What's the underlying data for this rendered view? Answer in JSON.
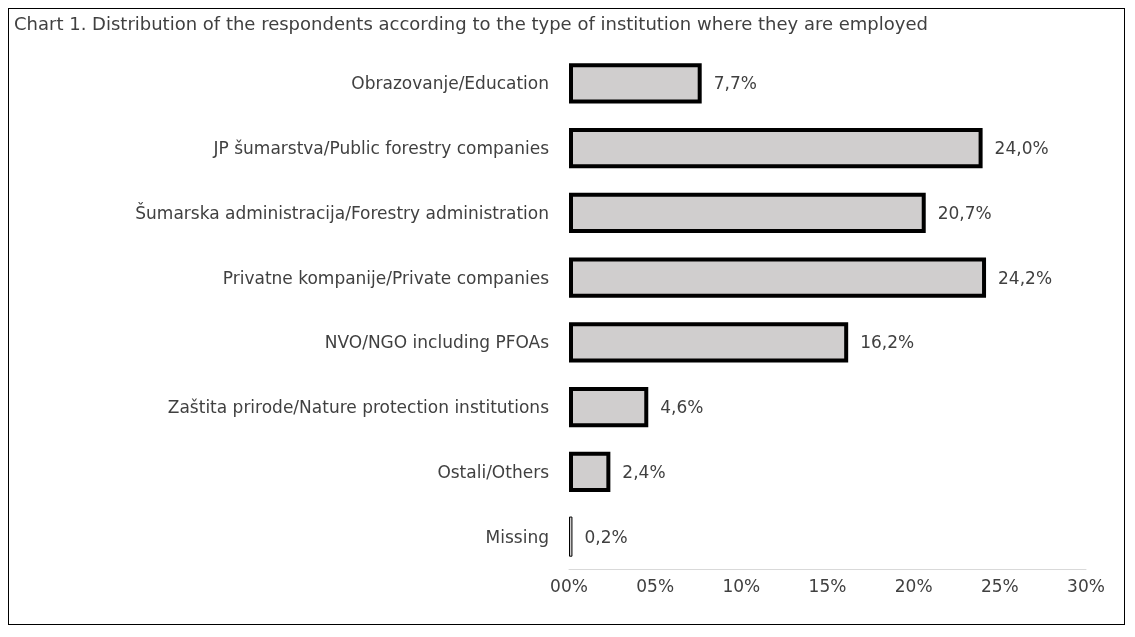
{
  "chart_data": {
    "type": "bar",
    "orientation": "horizontal",
    "title": "Chart 1. Distribution of the respondents according to the type of institution where they are employed",
    "categories": [
      "Obrazovanje/Education",
      "JP šumarstva/Public forestry companies",
      "Šumarska administracija/Forestry administration",
      "Privatne kompanije/Private companies",
      "NVO/NGO including PFOAs",
      "Zaštita prirode/Nature protection institutions",
      "Ostali/Others",
      "Missing"
    ],
    "values": [
      7.7,
      24.0,
      20.7,
      24.2,
      16.2,
      4.6,
      2.4,
      0.2
    ],
    "value_labels": [
      "7,7%",
      "24,0%",
      "20,7%",
      "24,2%",
      "16,2%",
      "4,6%",
      "2,4%",
      "0,2%"
    ],
    "color": "#d0cece",
    "xlim": [
      0,
      30
    ],
    "xticks": [
      {
        "value": 0,
        "label": "00%"
      },
      {
        "value": 5,
        "label": "05%"
      },
      {
        "value": 10,
        "label": "10%"
      },
      {
        "value": 15,
        "label": "15%"
      },
      {
        "value": 20,
        "label": "20%"
      },
      {
        "value": 25,
        "label": "25%"
      },
      {
        "value": 30,
        "label": "30%"
      }
    ],
    "grid": false
  }
}
